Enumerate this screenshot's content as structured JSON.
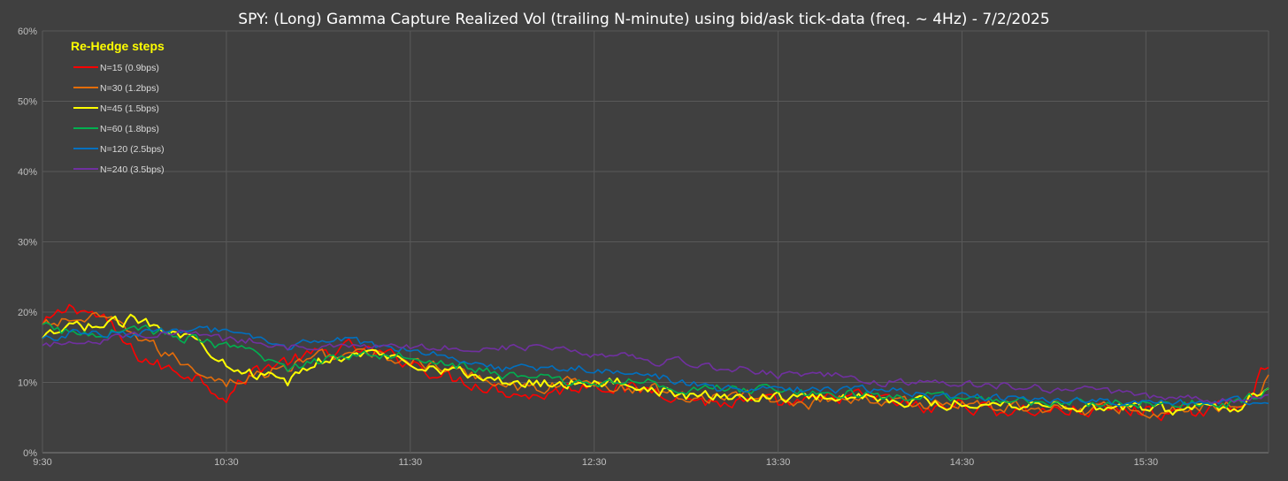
{
  "chart_data": {
    "type": "line",
    "title": "SPY: (Long) Gamma Capture Realized Vol (trailing N-minute) using bid/ask tick-data (freq. ~ 4Hz) - 7/2/2025",
    "xlabel": "",
    "ylabel": "",
    "x_ticks": [
      "9:30",
      "10:30",
      "11:30",
      "12:30",
      "13:30",
      "14:30",
      "15:30"
    ],
    "x_range_minutes": [
      0,
      400
    ],
    "ylim": [
      0,
      60
    ],
    "y_ticks": [
      "0%",
      "10%",
      "20%",
      "30%",
      "40%",
      "50%",
      "60%"
    ],
    "grid": true,
    "legend_title": "Re-Hedge steps",
    "legend_position": "top-left",
    "x_minutes": [
      0,
      10,
      20,
      30,
      40,
      50,
      60,
      70,
      80,
      90,
      100,
      110,
      120,
      130,
      140,
      150,
      160,
      170,
      180,
      190,
      200,
      210,
      220,
      230,
      240,
      250,
      260,
      270,
      280,
      290,
      300,
      310,
      320,
      330,
      340,
      350,
      360,
      370,
      380,
      390,
      395,
      400
    ],
    "series": [
      {
        "name": "N=15 (0.9bps)",
        "color": "#ff0000",
        "values": [
          18,
          21,
          19,
          14,
          12,
          11,
          8,
          12,
          13,
          14,
          15,
          14,
          13,
          11,
          10,
          9,
          8,
          9,
          10,
          9,
          9,
          8,
          7,
          7,
          7,
          7,
          8,
          8,
          7,
          6,
          7,
          6,
          6,
          6,
          6,
          6,
          6,
          5.5,
          6,
          7,
          9,
          13
        ]
      },
      {
        "name": "N=30 (1.2bps)",
        "color": "#e46c0a",
        "values": [
          18,
          19,
          19,
          17,
          14,
          12,
          10,
          11,
          12,
          14,
          14,
          14,
          13,
          12,
          11,
          10,
          9,
          10,
          10,
          9,
          9,
          8,
          8,
          8,
          7.5,
          7,
          8,
          7.5,
          7,
          7,
          7,
          6.5,
          6.5,
          6.5,
          6,
          6.5,
          6,
          6,
          6.5,
          7,
          8,
          11
        ]
      },
      {
        "name": "N=45 (1.5bps)",
        "color": "#ffff00",
        "values": [
          16,
          18,
          18,
          19,
          18,
          16,
          13,
          11,
          10,
          13,
          14,
          14,
          13,
          12,
          11,
          10,
          10,
          10,
          10,
          10,
          9,
          8,
          8,
          8,
          8,
          8,
          8,
          8,
          7.5,
          7,
          7,
          7,
          7,
          7,
          6.5,
          6.5,
          6.5,
          6,
          6.5,
          6.5,
          8,
          10
        ]
      },
      {
        "name": "N=60 (1.8bps)",
        "color": "#00b050",
        "values": [
          18,
          17,
          17,
          18,
          17,
          16,
          15,
          14,
          12,
          13,
          14,
          14,
          14,
          13,
          12,
          11,
          11,
          10,
          10,
          10,
          10,
          9,
          9,
          9,
          9,
          8.5,
          8.5,
          8,
          8,
          8,
          7.5,
          7.5,
          7.5,
          7,
          7,
          7,
          7,
          7,
          7,
          7,
          8,
          9
        ]
      },
      {
        "name": "N=120 (2.5bps)",
        "color": "#0070c0",
        "values": [
          16,
          17,
          17,
          17,
          17,
          18,
          17,
          16,
          15,
          16,
          16,
          15,
          15,
          14,
          13,
          12,
          12,
          12,
          12,
          11,
          11,
          10,
          9,
          9,
          9,
          9,
          9,
          9,
          9,
          8,
          8,
          8,
          7.5,
          7.5,
          7.5,
          7,
          7,
          7,
          7,
          7.5,
          7.5,
          7.5
        ]
      },
      {
        "name": "N=240 (3.5bps)",
        "color": "#7030a0",
        "values": [
          15,
          16,
          16,
          17,
          17,
          17,
          16,
          16,
          15,
          15,
          15,
          15,
          15,
          15,
          15,
          15,
          15,
          15,
          14,
          14,
          13,
          13,
          12,
          12,
          11,
          11,
          11,
          10,
          10,
          10,
          10,
          9.5,
          9.5,
          9,
          9,
          8.5,
          8,
          8,
          7.5,
          7.5,
          8,
          8
        ]
      }
    ]
  }
}
